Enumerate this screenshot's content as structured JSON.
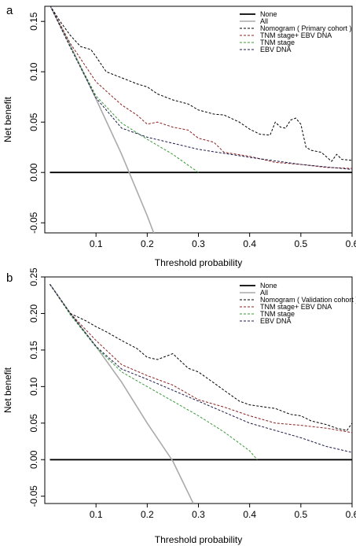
{
  "chart_data": [
    {
      "type": "line",
      "panel_label": "a",
      "xlabel": "Threshold probability",
      "ylabel": "Net benefit",
      "xlim": [
        0.0,
        0.6
      ],
      "ylim": [
        -0.06,
        0.165
      ],
      "xticks": [
        "0.1",
        "0.2",
        "0.3",
        "0.4",
        "0.5",
        "0.6"
      ],
      "yticks": [
        "-0.05",
        "0.00",
        "0.05",
        "0.10",
        "0.15"
      ],
      "xtick_values": [
        0.1,
        0.2,
        0.3,
        0.4,
        0.5,
        0.6
      ],
      "ytick_values": [
        -0.05,
        0.0,
        0.05,
        0.1,
        0.15
      ],
      "legend_position": "top-right",
      "series": [
        {
          "name": "None",
          "color": "#000000",
          "style": "solid",
          "width": 1.8,
          "x": [
            0.01,
            0.6
          ],
          "y": [
            0.0,
            0.0
          ]
        },
        {
          "name": "All",
          "color": "#aaaaaa",
          "style": "solid",
          "width": 1.6,
          "x": [
            0.01,
            0.05,
            0.1,
            0.15,
            0.2,
            0.22
          ],
          "y": [
            0.166,
            0.126,
            0.073,
            0.018,
            -0.043,
            -0.07
          ]
        },
        {
          "name": "Nomogram ( Primary cohort )",
          "color": "#000000",
          "style": "dashed",
          "width": 1,
          "x": [
            0.01,
            0.03,
            0.05,
            0.07,
            0.09,
            0.1,
            0.12,
            0.14,
            0.16,
            0.18,
            0.2,
            0.22,
            0.25,
            0.28,
            0.3,
            0.33,
            0.35,
            0.38,
            0.4,
            0.42,
            0.44,
            0.45,
            0.46,
            0.47,
            0.48,
            0.49,
            0.5,
            0.51,
            0.52,
            0.54,
            0.56,
            0.57,
            0.58,
            0.6
          ],
          "y": [
            0.166,
            0.15,
            0.136,
            0.125,
            0.122,
            0.115,
            0.1,
            0.096,
            0.092,
            0.088,
            0.085,
            0.078,
            0.072,
            0.068,
            0.062,
            0.058,
            0.057,
            0.05,
            0.043,
            0.038,
            0.037,
            0.05,
            0.045,
            0.044,
            0.052,
            0.054,
            0.048,
            0.025,
            0.022,
            0.02,
            0.011,
            0.018,
            0.013,
            0.012
          ]
        },
        {
          "name": "TNM stage+ EBV DNA",
          "color": "#8b2020",
          "style": "dashed",
          "width": 1,
          "x": [
            0.01,
            0.05,
            0.1,
            0.15,
            0.18,
            0.2,
            0.22,
            0.25,
            0.28,
            0.3,
            0.33,
            0.35,
            0.4,
            0.45,
            0.5,
            0.55,
            0.6
          ],
          "y": [
            0.166,
            0.128,
            0.09,
            0.067,
            0.057,
            0.048,
            0.05,
            0.045,
            0.042,
            0.034,
            0.03,
            0.02,
            0.016,
            0.01,
            0.008,
            0.005,
            0.004
          ]
        },
        {
          "name": "TNM stage",
          "color": "#3a9a3a",
          "style": "dashed",
          "width": 1,
          "x": [
            0.01,
            0.05,
            0.1,
            0.15,
            0.2,
            0.25,
            0.3
          ],
          "y": [
            0.166,
            0.125,
            0.076,
            0.049,
            0.033,
            0.018,
            0.0
          ]
        },
        {
          "name": "EBV DNA",
          "color": "#1a1a4a",
          "style": "dashed",
          "width": 1,
          "x": [
            0.01,
            0.05,
            0.1,
            0.15,
            0.2,
            0.3,
            0.4,
            0.5,
            0.6
          ],
          "y": [
            0.166,
            0.124,
            0.074,
            0.044,
            0.035,
            0.023,
            0.015,
            0.008,
            0.003
          ]
        }
      ]
    },
    {
      "type": "line",
      "panel_label": "b",
      "xlabel": "Threshold probability",
      "ylabel": "Net benefit",
      "xlim": [
        0.0,
        0.6
      ],
      "ylim": [
        -0.06,
        0.25
      ],
      "xticks": [
        "0.1",
        "0.2",
        "0.3",
        "0.4",
        "0.5",
        "0.6"
      ],
      "yticks": [
        "-0.05",
        "0.00",
        "0.05",
        "0.10",
        "0.15",
        "0.20",
        "0.25"
      ],
      "xtick_values": [
        0.1,
        0.2,
        0.3,
        0.4,
        0.5,
        0.6
      ],
      "ytick_values": [
        -0.05,
        0.0,
        0.05,
        0.1,
        0.15,
        0.2,
        0.25
      ],
      "legend_position": "top-right",
      "series": [
        {
          "name": "None",
          "color": "#000000",
          "style": "solid",
          "width": 1.8,
          "x": [
            0.01,
            0.6
          ],
          "y": [
            0.0,
            0.0
          ]
        },
        {
          "name": "All",
          "color": "#aaaaaa",
          "style": "solid",
          "width": 1.6,
          "x": [
            0.01,
            0.05,
            0.1,
            0.15,
            0.2,
            0.25,
            0.29
          ],
          "y": [
            0.24,
            0.2,
            0.155,
            0.106,
            0.05,
            -0.002,
            -0.06
          ]
        },
        {
          "name": "Nomogram ( Validation cohort )",
          "color": "#000000",
          "style": "dashed",
          "width": 1,
          "x": [
            0.01,
            0.03,
            0.05,
            0.08,
            0.1,
            0.12,
            0.15,
            0.18,
            0.2,
            0.22,
            0.25,
            0.28,
            0.3,
            0.33,
            0.35,
            0.38,
            0.4,
            0.43,
            0.45,
            0.48,
            0.5,
            0.52,
            0.55,
            0.57,
            0.59,
            0.6
          ],
          "y": [
            0.24,
            0.22,
            0.2,
            0.19,
            0.182,
            0.175,
            0.163,
            0.152,
            0.14,
            0.137,
            0.145,
            0.125,
            0.12,
            0.105,
            0.095,
            0.08,
            0.075,
            0.072,
            0.07,
            0.062,
            0.06,
            0.053,
            0.048,
            0.043,
            0.04,
            0.05
          ]
        },
        {
          "name": "TNM stage+ EBV DNA",
          "color": "#8b2020",
          "style": "dashed",
          "width": 1,
          "x": [
            0.01,
            0.05,
            0.1,
            0.15,
            0.2,
            0.25,
            0.3,
            0.35,
            0.4,
            0.45,
            0.5,
            0.55,
            0.6
          ],
          "y": [
            0.24,
            0.2,
            0.163,
            0.13,
            0.115,
            0.102,
            0.082,
            0.072,
            0.06,
            0.05,
            0.047,
            0.043,
            0.037
          ]
        },
        {
          "name": "TNM stage",
          "color": "#3a9a3a",
          "style": "dashed",
          "width": 1,
          "x": [
            0.01,
            0.05,
            0.1,
            0.15,
            0.2,
            0.25,
            0.3,
            0.35,
            0.4,
            0.415
          ],
          "y": [
            0.24,
            0.198,
            0.154,
            0.12,
            0.1,
            0.08,
            0.06,
            0.038,
            0.012,
            0.0
          ]
        },
        {
          "name": "EBV DNA",
          "color": "#1a1a4a",
          "style": "dashed",
          "width": 1,
          "x": [
            0.01,
            0.05,
            0.1,
            0.15,
            0.2,
            0.25,
            0.3,
            0.35,
            0.4,
            0.45,
            0.5,
            0.55,
            0.6
          ],
          "y": [
            0.24,
            0.2,
            0.155,
            0.124,
            0.11,
            0.095,
            0.08,
            0.065,
            0.05,
            0.04,
            0.03,
            0.018,
            0.01
          ]
        }
      ]
    }
  ]
}
